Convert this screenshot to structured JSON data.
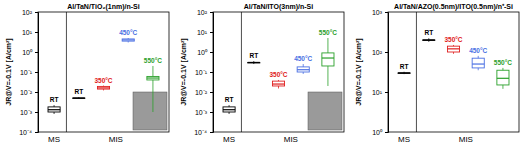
{
  "chart_data": [
    {
      "type": "box",
      "title": "Al/TaN/TiO₂(1nm)/n-Si",
      "y_label": "JR@V=-0.1V [A/cm²]",
      "log": "y",
      "ylim": [
        0.0001,
        100
      ],
      "yticks": [
        {
          "value": 0.0001,
          "label": "10⁻⁴"
        },
        {
          "value": 0.001,
          "label": "10⁻³"
        },
        {
          "value": 0.01,
          "label": "10⁻²"
        },
        {
          "value": 0.1,
          "label": "10⁻¹"
        },
        {
          "value": 1,
          "label": "10⁰"
        },
        {
          "value": 10,
          "label": "10¹"
        },
        {
          "value": 100,
          "label": "10²"
        }
      ],
      "groups": [
        {
          "label": "MS",
          "categories": [
            "RT"
          ],
          "colors": [
            "#000000"
          ],
          "boxes": [
            {
              "min": 0.0008,
              "q1": 0.001,
              "median": 0.0013,
              "q3": 0.0018,
              "max": 0.0022
            }
          ]
        },
        {
          "label": "MIS",
          "categories": [
            "RT",
            "350°C",
            "450°C",
            "550°C"
          ],
          "colors": [
            "#000000",
            "#e02020",
            "#4a6fe3",
            "#2aa02a"
          ],
          "boxes": [
            {
              "min": 0.0045,
              "q1": 0.005,
              "median": 0.005,
              "q3": 0.005,
              "max": 0.0055
            },
            {
              "min": 0.012,
              "q1": 0.014,
              "median": 0.016,
              "q3": 0.019,
              "max": 0.021
            },
            {
              "min": 3,
              "q1": 3.5,
              "median": 4,
              "q3": 4.5,
              "max": 5
            },
            {
              "min": 0.001,
              "q1": 0.04,
              "median": 0.05,
              "q3": 0.06,
              "max": 0.2
            }
          ]
        }
      ]
    },
    {
      "type": "box",
      "title": "Al/TaN/ITO(3nm)/n-Si",
      "y_label": "JR@V=-0.1V [A/cm²]",
      "log": "y",
      "ylim": [
        0.0001,
        100
      ],
      "yticks": [
        {
          "value": 0.0001,
          "label": "10⁻⁴"
        },
        {
          "value": 0.001,
          "label": "10⁻³"
        },
        {
          "value": 0.01,
          "label": "10⁻²"
        },
        {
          "value": 0.1,
          "label": "10⁻¹"
        },
        {
          "value": 1,
          "label": "10⁰"
        },
        {
          "value": 10,
          "label": "10¹"
        },
        {
          "value": 100,
          "label": "10²"
        }
      ],
      "groups": [
        {
          "label": "MS",
          "categories": [
            "RT"
          ],
          "colors": [
            "#000000"
          ],
          "boxes": [
            {
              "min": 0.0008,
              "q1": 0.001,
              "median": 0.0013,
              "q3": 0.0018,
              "max": 0.0022
            }
          ]
        },
        {
          "label": "MIS",
          "categories": [
            "RT",
            "350°C",
            "450°C",
            "550°C"
          ],
          "colors": [
            "#000000",
            "#e02020",
            "#4a6fe3",
            "#2aa02a"
          ],
          "boxes": [
            {
              "min": 0.25,
              "q1": 0.3,
              "median": 0.3,
              "q3": 0.3,
              "max": 0.35
            },
            {
              "min": 0.015,
              "q1": 0.02,
              "median": 0.025,
              "q3": 0.035,
              "max": 0.04
            },
            {
              "min": 0.08,
              "q1": 0.1,
              "median": 0.13,
              "q3": 0.18,
              "max": 0.25
            },
            {
              "min": 0.02,
              "q1": 0.2,
              "median": 0.5,
              "q3": 0.9,
              "max": 5
            }
          ]
        }
      ]
    },
    {
      "type": "box",
      "title": "Al/TaN/AZO(0.5nm)/ITO(0.5nm)/n⁺-Si",
      "y_label": "JR@V=-0.1V [A/cm²]",
      "log": "y",
      "ylim": [
        1,
        1000
      ],
      "yticks": [
        {
          "value": 1,
          "label": "10⁰"
        },
        {
          "value": 10,
          "label": "10¹"
        },
        {
          "value": 100,
          "label": "10²"
        },
        {
          "value": 1000,
          "label": "10³"
        }
      ],
      "groups": [
        {
          "label": "MS",
          "categories": [
            "RT"
          ],
          "colors": [
            "#000000"
          ],
          "boxes": [
            {
              "min": 28,
              "q1": 30,
              "median": 30,
              "q3": 30,
              "max": 32
            }
          ]
        },
        {
          "label": "MIS",
          "categories": [
            "RT",
            "350°C",
            "450°C",
            "550°C"
          ],
          "colors": [
            "#000000",
            "#e02020",
            "#4a6fe3",
            "#2aa02a"
          ],
          "boxes": [
            {
              "min": 180,
              "q1": 200,
              "median": 200,
              "q3": 200,
              "max": 220
            },
            {
              "min": 90,
              "q1": 100,
              "median": 120,
              "q3": 140,
              "max": 150
            },
            {
              "min": 35,
              "q1": 40,
              "median": 50,
              "q3": 70,
              "max": 80
            },
            {
              "min": 12,
              "q1": 15,
              "median": 22,
              "q3": 35,
              "max": 40
            }
          ]
        }
      ]
    }
  ]
}
